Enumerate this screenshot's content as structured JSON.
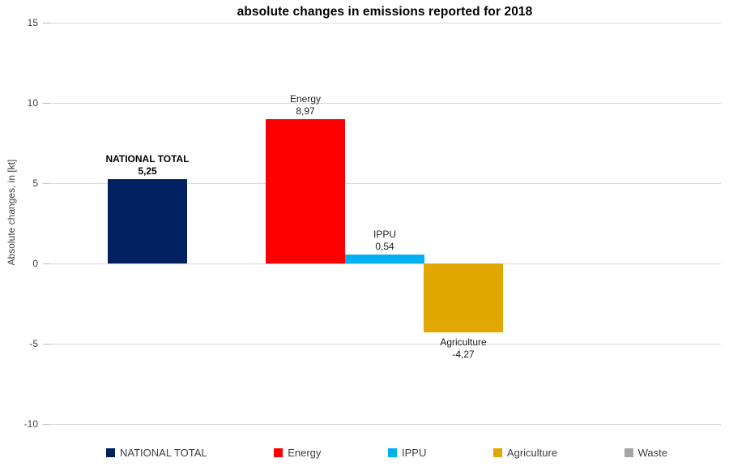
{
  "chart_data": {
    "type": "bar",
    "title": "absolute changes in emissions reported for 2018",
    "xlabel": "",
    "ylabel": "Absolute changes, in [kt]",
    "ylim": [
      -10,
      15
    ],
    "ytick_interval": 5,
    "yticks": [
      15,
      10,
      5,
      0,
      -5,
      -10
    ],
    "ytick_labels": [
      "15",
      "10",
      "5",
      "0",
      "-5",
      "-10"
    ],
    "decimal_separator": ",",
    "grid": true,
    "legend_position": "bottom",
    "gridline_color": "#d9d9d9",
    "series": [
      {
        "name": "NATIONAL TOTAL",
        "value": 5.25,
        "value_label": "5,25",
        "color": "#002060",
        "label_bold": true
      },
      {
        "name": "Energy",
        "value": 8.97,
        "value_label": "8,97",
        "color": "#ff0000",
        "label_bold": false
      },
      {
        "name": "IPPU",
        "value": 0.54,
        "value_label": "0,54",
        "color": "#00b0f0",
        "label_bold": false
      },
      {
        "name": "Agriculture",
        "value": -4.27,
        "value_label": "-4,27",
        "color": "#e0a800",
        "label_bold": false
      },
      {
        "name": "Waste",
        "value": null,
        "value_label": "",
        "color": "#a6a6a6",
        "label_bold": false
      }
    ]
  }
}
